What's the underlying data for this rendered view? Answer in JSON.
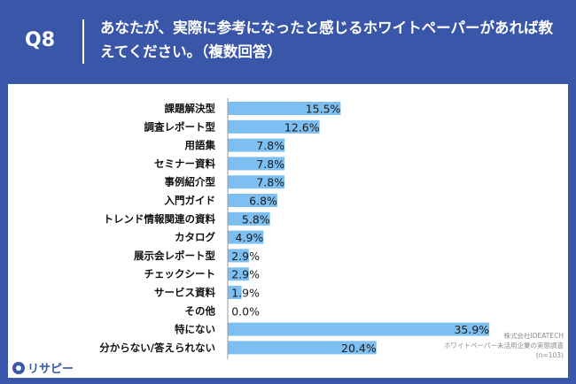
{
  "header": {
    "question_label": "Q8",
    "question_text": "あなたが、実際に参考になったと感じるホワイトペーパーがあれば教えてください。（複数回答）"
  },
  "chart_data": {
    "type": "bar",
    "orientation": "horizontal",
    "categories": [
      "課題解決型",
      "調査レポート型",
      "用語集",
      "セミナー資料",
      "事例紹介型",
      "入門ガイド",
      "トレンド情報関連の資料",
      "カタログ",
      "展示会レポート型",
      "チェックシート",
      "サービス資料",
      "その他",
      "特にない",
      "分からない/答えられない"
    ],
    "values": [
      15.5,
      12.6,
      7.8,
      7.8,
      7.8,
      6.8,
      5.8,
      4.9,
      2.9,
      2.9,
      1.9,
      0.0,
      35.9,
      20.4
    ],
    "value_labels": [
      "15.5%",
      "12.6%",
      "7.8%",
      "7.8%",
      "7.8%",
      "6.8%",
      "5.8%",
      "4.9%",
      "2.9%",
      "2.9%",
      "1.9%",
      "0.0%",
      "35.9%",
      "20.4%"
    ],
    "xlim": [
      0,
      45
    ],
    "grid": false,
    "bar_color": "#7cbff0"
  },
  "credit": {
    "line1": "株式会社IDEATECH",
    "line2": "ホワイトペーパー未活用企業の実態調査",
    "line3": "(n=103)"
  },
  "brand": {
    "name": "リサピー"
  }
}
